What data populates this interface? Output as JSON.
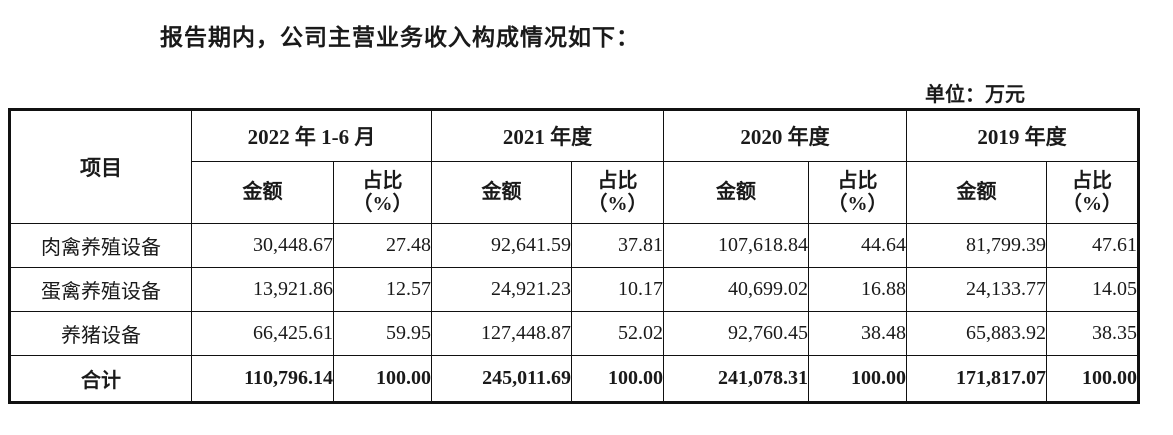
{
  "page": {
    "intro": "报告期内，公司主营业务收入构成情况如下：",
    "unit_label": "单位：万元"
  },
  "table": {
    "item_header": "项目",
    "periods": [
      {
        "label": "2022 年 1-6 月"
      },
      {
        "label": "2021 年度"
      },
      {
        "label": "2020 年度"
      },
      {
        "label": "2019 年度"
      }
    ],
    "sub_headers": {
      "amount": "金额",
      "ratio_line1": "占比",
      "ratio_line2": "（%）"
    },
    "rows": [
      {
        "item": "肉禽养殖设备",
        "bold": false,
        "values": [
          "30,448.67",
          "27.48",
          "92,641.59",
          "37.81",
          "107,618.84",
          "44.64",
          "81,799.39",
          "47.61"
        ]
      },
      {
        "item": "蛋禽养殖设备",
        "bold": false,
        "values": [
          "13,921.86",
          "12.57",
          "24,921.23",
          "10.17",
          "40,699.02",
          "16.88",
          "24,133.77",
          "14.05"
        ]
      },
      {
        "item": "养猪设备",
        "bold": false,
        "values": [
          "66,425.61",
          "59.95",
          "127,448.87",
          "52.02",
          "92,760.45",
          "38.48",
          "65,883.92",
          "38.35"
        ]
      },
      {
        "item": "合计",
        "bold": true,
        "values": [
          "110,796.14",
          "100.00",
          "245,011.69",
          "100.00",
          "241,078.31",
          "100.00",
          "171,817.07",
          "100.00"
        ]
      }
    ]
  }
}
